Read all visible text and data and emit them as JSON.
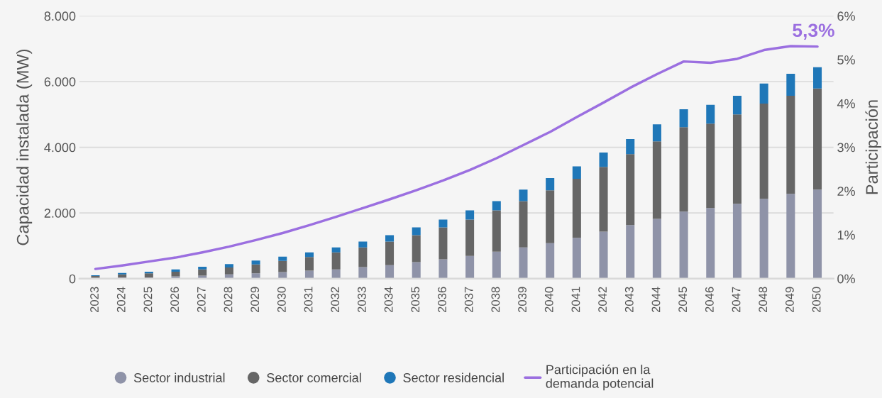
{
  "chart_data": {
    "type": "bar",
    "stacked": true,
    "ylabel": "Capacidad instalada (MW)",
    "y2label": "Participación",
    "categories": [
      "2023",
      "2024",
      "2025",
      "2026",
      "2027",
      "2028",
      "2029",
      "2030",
      "2031",
      "2032",
      "2033",
      "2034",
      "2035",
      "2036",
      "2037",
      "2038",
      "2039",
      "2040",
      "2041",
      "2042",
      "2043",
      "2044",
      "2045",
      "2046",
      "2047",
      "2048",
      "2049",
      "2050"
    ],
    "series": [
      {
        "name": "Sector industrial",
        "color": "#8f93a8",
        "values": [
          20,
          30,
          30,
          70,
          90,
          130,
          160,
          200,
          240,
          280,
          350,
          410,
          500,
          590,
          690,
          820,
          950,
          1080,
          1240,
          1430,
          1630,
          1820,
          2040,
          2150,
          2280,
          2430,
          2580,
          2710
        ]
      },
      {
        "name": "Sector comercial",
        "color": "#666666",
        "values": [
          60,
          100,
          130,
          140,
          190,
          210,
          270,
          340,
          420,
          520,
          600,
          720,
          820,
          970,
          1110,
          1260,
          1410,
          1610,
          1800,
          1970,
          2160,
          2360,
          2570,
          2570,
          2720,
          2900,
          2990,
          3080
        ]
      },
      {
        "name": "Sector residencial",
        "color": "#1f77b8",
        "values": [
          20,
          40,
          50,
          70,
          80,
          100,
          120,
          130,
          140,
          150,
          180,
          190,
          240,
          240,
          280,
          280,
          350,
          370,
          380,
          440,
          460,
          520,
          550,
          570,
          570,
          610,
          670,
          650
        ]
      },
      {
        "name": "Participación en la\ndemanda potencial",
        "type": "line",
        "axis": "y2",
        "color": "#9b6fe0",
        "values": [
          0.22,
          0.3,
          0.39,
          0.48,
          0.6,
          0.73,
          0.88,
          1.04,
          1.22,
          1.41,
          1.61,
          1.81,
          2.02,
          2.24,
          2.48,
          2.75,
          3.05,
          3.35,
          3.69,
          4.02,
          4.36,
          4.67,
          4.96,
          4.93,
          5.02,
          5.22,
          5.31,
          5.3
        ]
      }
    ],
    "ylim": [
      0,
      8000
    ],
    "yticks": [
      {
        "value": 0,
        "label": "0"
      },
      {
        "value": 2000,
        "label": "2.000"
      },
      {
        "value": 4000,
        "label": "4.000"
      },
      {
        "value": 6000,
        "label": "6.000"
      },
      {
        "value": 8000,
        "label": "8.000"
      }
    ],
    "y2lim": [
      0,
      6
    ],
    "y2ticks": [
      {
        "value": 0,
        "label": "0%"
      },
      {
        "value": 1,
        "label": "1%"
      },
      {
        "value": 2,
        "label": "2%"
      },
      {
        "value": 3,
        "label": "3%"
      },
      {
        "value": 4,
        "label": "4%"
      },
      {
        "value": 5,
        "label": "5%"
      },
      {
        "value": 6,
        "label": "6%"
      }
    ],
    "annotations": [
      "5,3%"
    ],
    "grid": "y",
    "legend": "bottom"
  }
}
